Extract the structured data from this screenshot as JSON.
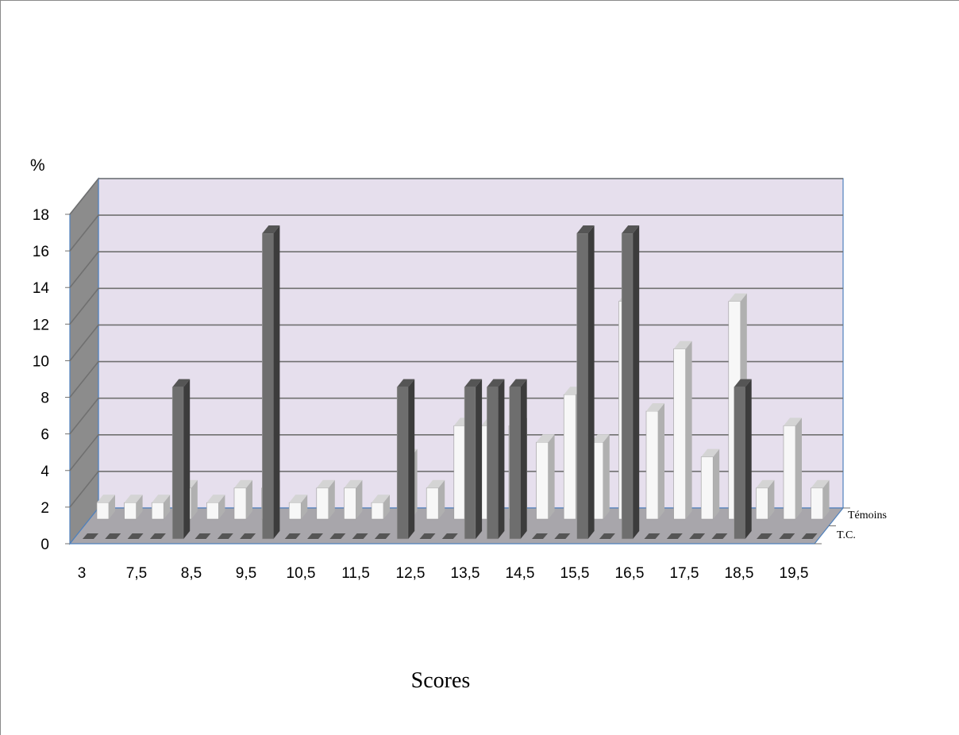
{
  "chart_data": {
    "type": "bar",
    "style": "3d-column-depth",
    "xlabel": "Scores",
    "ylabel": "%",
    "ylim": [
      0,
      18
    ],
    "yticks": [
      0,
      2,
      4,
      6,
      8,
      10,
      12,
      14,
      16,
      18
    ],
    "grid": true,
    "x_tick_labels": [
      "3",
      "7,5",
      "8,5",
      "9,5",
      "10,5",
      "11,5",
      "12,5",
      "13,5",
      "14,5",
      "15,5",
      "16,5",
      "17,5",
      "18,5",
      "19,5"
    ],
    "depth_labels": [
      "Témoins",
      "T.C."
    ],
    "series": [
      {
        "name": "T.C.",
        "color": "#6e6e6e",
        "values": [
          0,
          0,
          0,
          0,
          8.3,
          0,
          0,
          0,
          16.7,
          0,
          0,
          0,
          0,
          0,
          8.3,
          0,
          0,
          8.3,
          8.3,
          8.3,
          0,
          0,
          16.7,
          0,
          16.7,
          0,
          0,
          0,
          0,
          8.3,
          0,
          0,
          0
        ]
      },
      {
        "name": "Témoins",
        "color": "#f7f7f7",
        "values": [
          0.9,
          0.9,
          0.9,
          1.7,
          0.9,
          1.7,
          1.7,
          0.9,
          1.7,
          1.7,
          0.9,
          3.4,
          1.7,
          5.1,
          5.1,
          5.1,
          4.2,
          6.8,
          4.2,
          11.9,
          5.9,
          9.3,
          3.4,
          11.9,
          1.7,
          5.1,
          1.7
        ]
      }
    ]
  }
}
